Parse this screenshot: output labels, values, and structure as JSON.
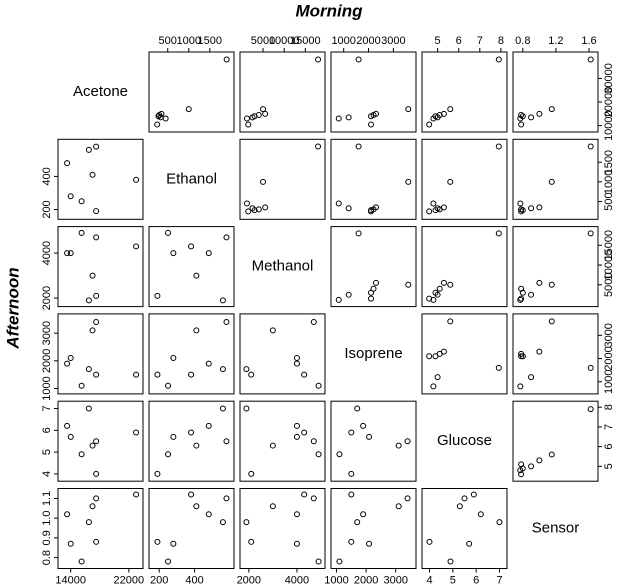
{
  "chart_data": {
    "type": "scatter_matrix",
    "variables": [
      "Acetone",
      "Ethanol",
      "Methanol",
      "Isoprene",
      "Glucose",
      "Sensor"
    ],
    "datasets": [
      {
        "name": "Morning",
        "position": "upper",
        "values": [
          [
            38000,
            17000,
            15000,
            14500,
            14000,
            13500,
            13000,
            10500
          ],
          [
            1900,
            1000,
            350,
            300,
            280,
            330,
            450,
            250
          ],
          [
            18000,
            5000,
            5500,
            4000,
            3000,
            2500,
            1200,
            1500
          ],
          [
            1600,
            3600,
            2300,
            2200,
            2100,
            1200,
            800,
            2100
          ],
          [
            7.9,
            5.6,
            5.3,
            5.1,
            4.9,
            5.0,
            4.8,
            4.6
          ],
          [
            1.62,
            1.15,
            1.0,
            0.78,
            0.8,
            0.9,
            0.77,
            0.78
          ]
        ],
        "lims": [
          [
            9000,
            39500
          ],
          [
            150,
            1980
          ],
          [
            500,
            18700
          ],
          [
            650,
            3750
          ],
          [
            4.45,
            8.1
          ],
          [
            0.73,
            1.66
          ]
        ],
        "ticks": [
          [
            10000,
            20000,
            30000
          ],
          [
            500,
            1000,
            1500
          ],
          [
            5000,
            10000,
            15000
          ],
          [
            1000,
            2000,
            3000
          ],
          [
            5,
            6,
            7,
            8
          ],
          [
            0.8,
            1.2,
            1.6
          ]
        ]
      },
      {
        "name": "Afternoon",
        "position": "lower",
        "values": [
          [
            13500,
            14000,
            15500,
            16500,
            17000,
            17500,
            17500,
            23000
          ],
          [
            480,
            280,
            250,
            560,
            410,
            580,
            190,
            380
          ],
          [
            4000,
            4000,
            4900,
            1900,
            3000,
            4700,
            2100,
            4300
          ],
          [
            1900,
            2100,
            1100,
            1700,
            3100,
            3400,
            1500,
            1500
          ],
          [
            6.2,
            5.7,
            4.9,
            7.0,
            5.3,
            5.5,
            4.0,
            5.9
          ],
          [
            1.02,
            0.87,
            0.78,
            0.98,
            1.06,
            1.1,
            0.88,
            1.12
          ]
        ],
        "lims": [
          [
            12800,
            23400
          ],
          [
            165,
            600
          ],
          [
            1800,
            5000
          ],
          [
            950,
            3550
          ],
          [
            3.85,
            7.15
          ],
          [
            0.765,
            1.13
          ]
        ],
        "ticks": [
          [
            14000,
            22000
          ],
          [
            200,
            400
          ],
          [
            2000,
            4000
          ],
          [
            1000,
            2000,
            3000
          ],
          [
            4,
            5,
            6,
            7
          ],
          [
            0.8,
            0.9,
            {
              "value": 1,
              "label": "1.0"
            },
            1.1
          ]
        ]
      }
    ]
  }
}
